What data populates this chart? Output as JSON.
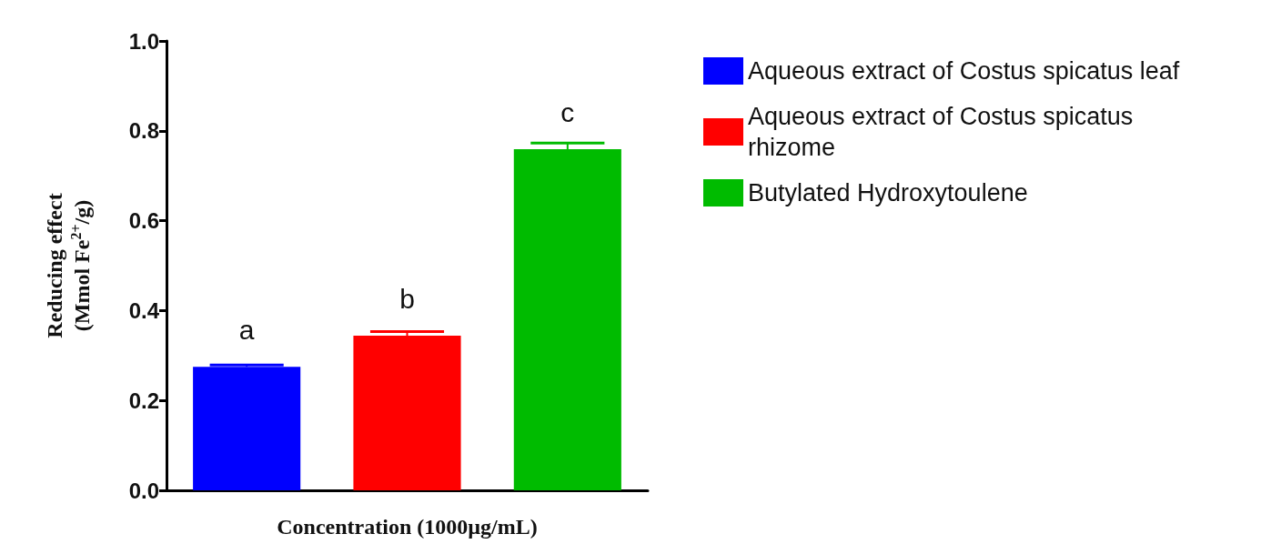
{
  "chart_data": {
    "type": "bar",
    "xlabel": "Concentration (1000µg/mL)",
    "ylabel": "Reducing effect\n(Mmol Fe$^{2+}$/g)",
    "categories": [
      null,
      null,
      null
    ],
    "series": [
      {
        "name": "Aqueous extract of Costus spicatus leaf",
        "color": "#0000ff",
        "values": [
          0.275,
          null,
          null
        ],
        "errors": [
          0.004,
          null,
          null
        ]
      },
      {
        "name": "Aqueous extract of Costus spicatus rhizome",
        "color": "#ff0000",
        "values": [
          null,
          0.344,
          null
        ],
        "errors": [
          null,
          0.009,
          null
        ]
      },
      {
        "name": "Butylated Hydroxytoulene",
        "color": "#00bb00",
        "values": [
          null,
          null,
          0.759
        ],
        "errors": [
          null,
          null,
          0.014
        ]
      }
    ],
    "annotations": [
      "a",
      "b",
      "c"
    ],
    "ylim": [
      0,
      1
    ],
    "yticks": [
      {
        "value": 0,
        "label": "0.0"
      },
      {
        "value": 0.2,
        "label": "0.2"
      },
      {
        "value": 0.4,
        "label": "0.4"
      },
      {
        "value": 0.6,
        "label": "0.6"
      },
      {
        "value": 0.8,
        "label": "0.8"
      },
      {
        "value": 1,
        "label": "1.0"
      }
    ],
    "grid": false,
    "legend": "top right"
  }
}
